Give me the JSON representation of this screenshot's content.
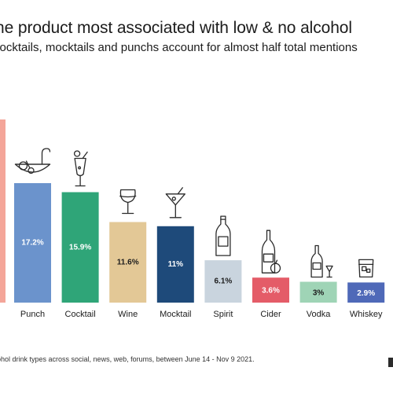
{
  "title": "he product most associated with low & no alcohol",
  "subtitle": "cocktails, mocktails and punchs account for almost half total mentions",
  "footnote": "ohol drink types across social, news, web, forums, between June 14 - Nov 9 2021.",
  "chart_data": {
    "type": "bar",
    "title": "he product most associated with low & no alcohol",
    "subtitle": "cocktails, mocktails and punchs account for almost half total mentions",
    "xlabel": "",
    "ylabel": "",
    "grid": false,
    "legend": "none",
    "categories": [
      "Punch",
      "Cocktail",
      "Wine",
      "Mocktail",
      "Spirit",
      "Cider",
      "Vodka",
      "Whiskey"
    ],
    "values": [
      17.2,
      15.9,
      11.6,
      11,
      6.1,
      3.6,
      3,
      2.9
    ],
    "labels": [
      "17.2%",
      "15.9%",
      "11.6%",
      "11%",
      "6.1%",
      "3.6%",
      "3%",
      "2.9%"
    ],
    "colors": [
      "#6b93cc",
      "#2fa578",
      "#e3c896",
      "#1e4a7a",
      "#c9d4de",
      "#e45c68",
      "#9fd4b6",
      "#4f69b8"
    ],
    "label_colors": [
      "#ffffff",
      "#ffffff",
      "#1c1c1c",
      "#ffffff",
      "#1c1c1c",
      "#ffffff",
      "#1c1c1c",
      "#ffffff"
    ],
    "icons": [
      "punch-bowl-icon",
      "cocktail-glass-icon",
      "wine-glass-icon",
      "martini-glass-icon",
      "spirit-bottle-icon",
      "cider-bottle-apple-icon",
      "vodka-bottle-icon",
      "whiskey-glass-icon"
    ],
    "partial_bar": {
      "color": "#f4a599"
    }
  }
}
